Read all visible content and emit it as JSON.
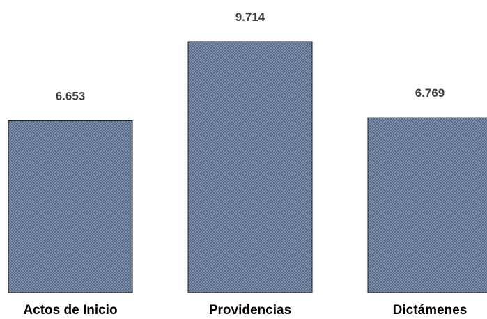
{
  "chart_data": {
    "type": "bar",
    "categories": [
      "Actos de Inicio",
      "Providencias",
      "Dictámenes"
    ],
    "values": [
      6653,
      9714,
      6769
    ],
    "value_labels": [
      "6.653",
      "9.714",
      "6.769"
    ],
    "title": "",
    "xlabel": "",
    "ylabel": "",
    "ylim": [
      0,
      10500
    ],
    "grid": false,
    "legend": "none",
    "bar_color": "#5a6c87",
    "bar_pattern_color": "#7d90ab",
    "bar_border_color": "#1a1a1a"
  }
}
